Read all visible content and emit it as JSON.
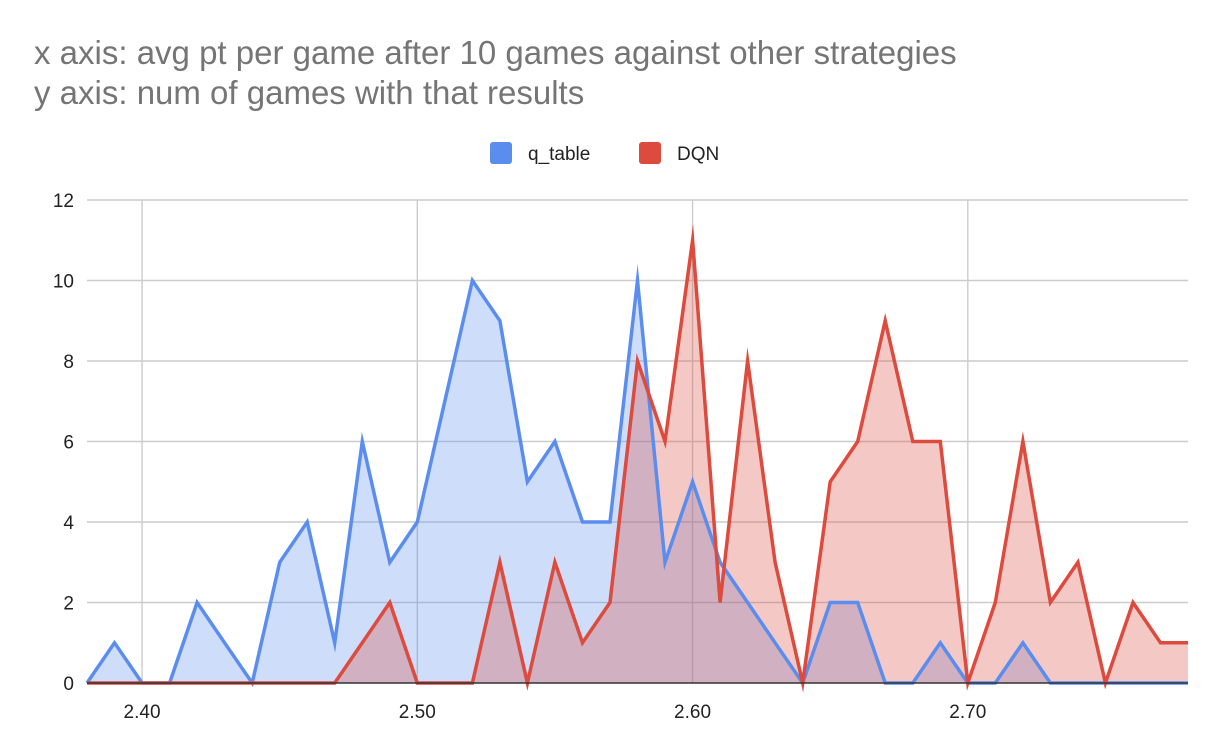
{
  "chart_data": {
    "type": "area",
    "title": [
      "x axis: avg pt per game after 10 games against other strategies",
      "y axis: num of games with that results"
    ],
    "xlabel": "",
    "ylabel": "",
    "xlim": [
      2.38,
      2.78
    ],
    "ylim": [
      0,
      12
    ],
    "x_ticks": [
      "2.40",
      "2.50",
      "2.60",
      "2.70"
    ],
    "y_ticks": [
      "0",
      "2",
      "4",
      "6",
      "8",
      "10",
      "12"
    ],
    "grid": true,
    "legend": "top-center",
    "series": [
      {
        "name": "q_table",
        "color": "#5b8def",
        "points": [
          [
            2.38,
            0
          ],
          [
            2.39,
            1
          ],
          [
            2.4,
            0
          ],
          [
            2.41,
            0
          ],
          [
            2.42,
            2
          ],
          [
            2.43,
            1
          ],
          [
            2.44,
            0
          ],
          [
            2.45,
            3
          ],
          [
            2.46,
            4
          ],
          [
            2.47,
            1
          ],
          [
            2.48,
            6
          ],
          [
            2.49,
            3
          ],
          [
            2.5,
            4
          ],
          [
            2.51,
            7
          ],
          [
            2.52,
            10
          ],
          [
            2.53,
            9
          ],
          [
            2.54,
            5
          ],
          [
            2.55,
            6
          ],
          [
            2.56,
            4
          ],
          [
            2.57,
            4
          ],
          [
            2.58,
            10
          ],
          [
            2.59,
            3
          ],
          [
            2.6,
            5
          ],
          [
            2.61,
            3
          ],
          [
            2.62,
            2
          ],
          [
            2.63,
            1
          ],
          [
            2.64,
            0
          ],
          [
            2.65,
            2
          ],
          [
            2.66,
            2
          ],
          [
            2.67,
            0
          ],
          [
            2.68,
            0
          ],
          [
            2.69,
            1
          ],
          [
            2.7,
            0
          ],
          [
            2.71,
            0
          ],
          [
            2.72,
            1
          ],
          [
            2.73,
            0
          ],
          [
            2.74,
            0
          ],
          [
            2.75,
            0
          ],
          [
            2.76,
            0
          ],
          [
            2.77,
            0
          ],
          [
            2.78,
            0
          ]
        ]
      },
      {
        "name": "DQN",
        "color": "#dc4b3e",
        "points": [
          [
            2.38,
            0
          ],
          [
            2.39,
            0
          ],
          [
            2.4,
            0
          ],
          [
            2.41,
            0
          ],
          [
            2.42,
            0
          ],
          [
            2.43,
            0
          ],
          [
            2.44,
            0
          ],
          [
            2.45,
            0
          ],
          [
            2.46,
            0
          ],
          [
            2.47,
            0
          ],
          [
            2.48,
            1
          ],
          [
            2.49,
            2
          ],
          [
            2.5,
            0
          ],
          [
            2.51,
            0
          ],
          [
            2.52,
            0
          ],
          [
            2.53,
            3
          ],
          [
            2.54,
            0
          ],
          [
            2.55,
            3
          ],
          [
            2.56,
            1
          ],
          [
            2.57,
            2
          ],
          [
            2.58,
            8
          ],
          [
            2.59,
            6
          ],
          [
            2.6,
            11
          ],
          [
            2.61,
            2
          ],
          [
            2.62,
            8
          ],
          [
            2.63,
            3
          ],
          [
            2.64,
            0
          ],
          [
            2.65,
            5
          ],
          [
            2.66,
            6
          ],
          [
            2.67,
            9
          ],
          [
            2.68,
            6
          ],
          [
            2.69,
            6
          ],
          [
            2.7,
            0
          ],
          [
            2.71,
            2
          ],
          [
            2.72,
            6
          ],
          [
            2.73,
            2
          ],
          [
            2.74,
            3
          ],
          [
            2.75,
            0
          ],
          [
            2.76,
            2
          ],
          [
            2.77,
            1
          ],
          [
            2.78,
            1
          ]
        ]
      }
    ]
  }
}
